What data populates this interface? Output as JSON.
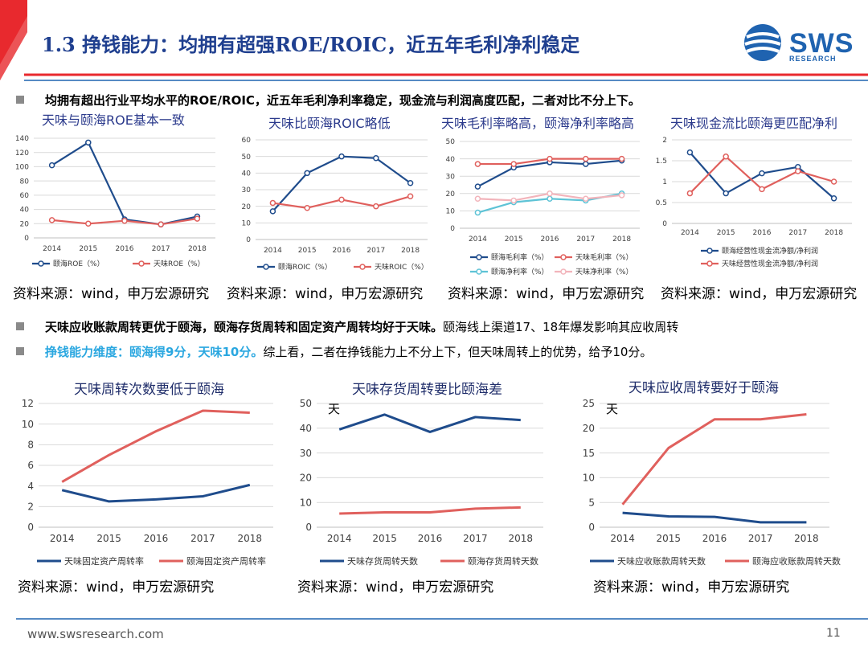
{
  "header": {
    "title": "1.3 挣钱能力：均拥有超强ROE/ROIC，近五年毛利净利稳定",
    "logo_text": "SWS",
    "logo_sub": "RESEARCH"
  },
  "colors": {
    "title_blue": "#1f3f8f",
    "header_red": "#e8292e",
    "series_navy": "#1f4c8c",
    "series_red": "#e0605d",
    "cyan": "#2aa7e0"
  },
  "bullets": {
    "b1": "均拥有超出行业平均水平的ROE/ROIC，近五年毛利净利率稳定，现金流与利润高度匹配，二者对比不分上下。",
    "b2_bold": "天味应收账款周转更优于颐海，颐海存货周转和固定资产周转均好于天味。",
    "b2_rest": "颐海线上渠道17、18年爆发影响其应收周转",
    "b3_bold": "挣钱能力维度：颐海得9分，天味10分。",
    "b3_rest": "综上看，二者在挣钱能力上不分上下，但天味周转上的优势，给予10分。"
  },
  "sources": {
    "s": "资料来源：wind，申万宏源研究"
  },
  "footer": {
    "url": "www.swsresearch.com",
    "page": "11"
  },
  "chart_data": [
    {
      "type": "line",
      "title": "天味与颐海ROE基本一致",
      "categories": [
        "2014",
        "2015",
        "2016",
        "2017",
        "2018"
      ],
      "ylim": [
        0,
        140
      ],
      "yticks": [
        0,
        20,
        40,
        60,
        80,
        100,
        120,
        140
      ],
      "series": [
        {
          "name": "颐海ROE（%）",
          "values": [
            102,
            134,
            26,
            19,
            30
          ],
          "color": "#1f4c8c",
          "marker": "circle"
        },
        {
          "name": "天味ROE（%）",
          "values": [
            25,
            20,
            24,
            19,
            27
          ],
          "color": "#e0605d",
          "marker": "circle"
        }
      ]
    },
    {
      "type": "line",
      "title": "天味比颐海ROIC略低",
      "categories": [
        "2014",
        "2015",
        "2016",
        "2017",
        "2018"
      ],
      "ylim": [
        0,
        60
      ],
      "yticks": [
        0,
        10,
        20,
        30,
        40,
        50,
        60
      ],
      "series": [
        {
          "name": "颐海ROIC（%）",
          "values": [
            17,
            40,
            50,
            49,
            34
          ],
          "color": "#1f4c8c",
          "marker": "circle"
        },
        {
          "name": "天味ROIC（%）",
          "values": [
            22,
            19,
            24,
            20,
            26
          ],
          "color": "#e0605d",
          "marker": "circle"
        }
      ]
    },
    {
      "type": "line",
      "title": "天味毛利率略高，颐海净利率略高",
      "categories": [
        "2014",
        "2015",
        "2016",
        "2017",
        "2018"
      ],
      "ylim": [
        0,
        50
      ],
      "yticks": [
        0,
        10,
        20,
        30,
        40,
        50
      ],
      "series": [
        {
          "name": "颐海毛利率（%）",
          "values": [
            24,
            35,
            38,
            37,
            39
          ],
          "color": "#1f4c8c",
          "marker": "circle"
        },
        {
          "name": "天味毛利率（%）",
          "values": [
            37,
            37,
            40,
            40,
            40
          ],
          "color": "#e0605d",
          "marker": "circle"
        },
        {
          "name": "颐海净利率（%）",
          "values": [
            9,
            15,
            17,
            16,
            20
          ],
          "color": "#5ec3d6",
          "marker": "circle"
        },
        {
          "name": "天味净利率（%）",
          "values": [
            17,
            16,
            20,
            17,
            19
          ],
          "color": "#f2b4bb",
          "marker": "circle"
        }
      ]
    },
    {
      "type": "line",
      "title": "天味现金流比颐海更匹配净利",
      "categories": [
        "2014",
        "2015",
        "2016",
        "2017",
        "2018"
      ],
      "ylim": [
        0,
        2
      ],
      "yticks": [
        0,
        0.5,
        1,
        1.5,
        2
      ],
      "series": [
        {
          "name": "颐海经营性现金流净额/净利润",
          "values": [
            1.7,
            0.72,
            1.2,
            1.35,
            0.6
          ],
          "color": "#1f4c8c",
          "marker": "circle"
        },
        {
          "name": "天味经营性现金流净额/净利润",
          "values": [
            0.72,
            1.6,
            0.82,
            1.25,
            1.0
          ],
          "color": "#e0605d",
          "marker": "circle"
        }
      ]
    },
    {
      "type": "line",
      "title": "天味周转次数要低于颐海",
      "categories": [
        "2014",
        "2015",
        "2016",
        "2017",
        "2018"
      ],
      "ylim": [
        0,
        12
      ],
      "yticks": [
        0,
        2,
        4,
        6,
        8,
        10,
        12
      ],
      "series": [
        {
          "name": "天味固定资产周转率",
          "values": [
            3.6,
            2.5,
            2.7,
            3.0,
            4.1
          ],
          "color": "#1f4c8c"
        },
        {
          "name": "颐海固定资产周转率",
          "values": [
            4.4,
            7.0,
            9.3,
            11.3,
            11.1
          ],
          "color": "#e0605d"
        }
      ]
    },
    {
      "type": "line",
      "title": "天味存货周转要比颐海差",
      "unit": "天",
      "categories": [
        "2014",
        "2015",
        "2016",
        "2017",
        "2018"
      ],
      "ylim": [
        0,
        50
      ],
      "yticks": [
        0,
        10,
        20,
        30,
        40,
        50
      ],
      "series": [
        {
          "name": "天味存货周转天数",
          "values": [
            39.5,
            45.5,
            38.5,
            44.5,
            43.3
          ],
          "color": "#1f4c8c"
        },
        {
          "name": "颐海存货周转天数",
          "values": [
            5.5,
            6.0,
            6.0,
            7.5,
            8.0
          ],
          "color": "#e0605d"
        }
      ]
    },
    {
      "type": "line",
      "title": "天味应收周转要好于颐海",
      "unit": "天",
      "categories": [
        "2014",
        "2015",
        "2016",
        "2017",
        "2018"
      ],
      "ylim": [
        0,
        25
      ],
      "yticks": [
        0,
        5,
        10,
        15,
        20,
        25
      ],
      "series": [
        {
          "name": "天味应收账款周转天数",
          "values": [
            2.9,
            2.2,
            2.1,
            1.0,
            1.0
          ],
          "color": "#1f4c8c"
        },
        {
          "name": "颐海应收账款周转天数",
          "values": [
            4.6,
            16.0,
            21.8,
            21.8,
            22.8
          ],
          "color": "#e0605d"
        }
      ]
    }
  ]
}
